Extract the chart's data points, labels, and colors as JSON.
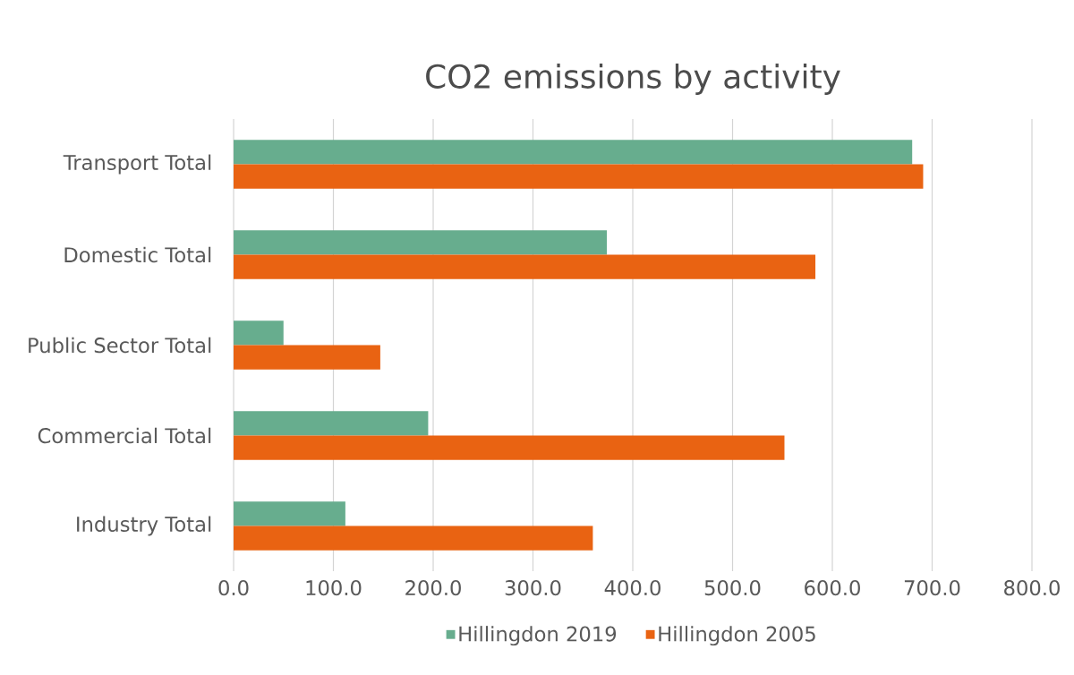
{
  "chart_data": {
    "type": "bar",
    "orientation": "horizontal",
    "title": "CO2 emissions by activity",
    "categories": [
      "Transport Total",
      "Domestic Total",
      "Public Sector Total",
      "Commercial Total",
      "Industry Total"
    ],
    "series": [
      {
        "name": "Hillingdon 2019",
        "color": "#67ad8e",
        "values": [
          680,
          374,
          50,
          195,
          112
        ]
      },
      {
        "name": "Hillingdon 2005",
        "color": "#e96312",
        "values": [
          691,
          583,
          147,
          552,
          360
        ]
      }
    ],
    "xlim": [
      0,
      800
    ],
    "xticks": [
      {
        "value": 0,
        "label": "0.0"
      },
      {
        "value": 100,
        "label": "100.0"
      },
      {
        "value": 200,
        "label": "200.0"
      },
      {
        "value": 300,
        "label": "300.0"
      },
      {
        "value": 400,
        "label": "400.0"
      },
      {
        "value": 500,
        "label": "500.0"
      },
      {
        "value": 600,
        "label": "600.0"
      },
      {
        "value": 700,
        "label": "700.0"
      },
      {
        "value": 800,
        "label": "800.0"
      }
    ],
    "grid": "x",
    "legend": "bottom"
  }
}
